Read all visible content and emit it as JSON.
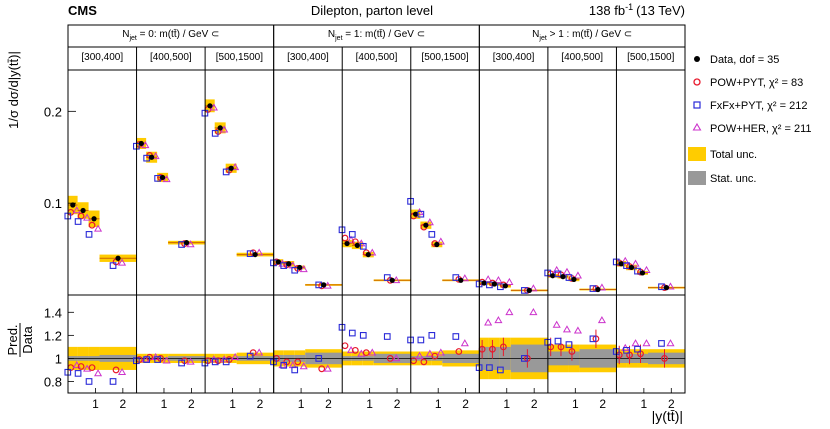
{
  "header": {
    "experiment": "CMS",
    "title": "Dilepton, parton level",
    "lumi_value": "138 fb",
    "lumi_exponent": "-1",
    "energy": "(13 TeV)"
  },
  "labels": {
    "ylabel_top": "1/σ dσ/d|y(tt̄)|",
    "ylabel_ratio_num": "Pred.",
    "ylabel_ratio_den": "Data",
    "xlabel": "|y(tt̄)|"
  },
  "legend": {
    "data": "Data, dof = 35",
    "powpyt": "POW+PYT, χ² = 83",
    "fxfx": "FxFx+PYT, χ² = 212",
    "powher": "POW+HER, χ² = 211",
    "total": "Total unc.",
    "stat": "Stat. unc."
  },
  "colors": {
    "data": "#000000",
    "powpyt": "#e8192c",
    "fxfx": "#2a2ad8",
    "powher": "#cc33cc",
    "total": "#ffcc00",
    "stat": "#999999"
  },
  "chart_data": {
    "type": "scatter",
    "title": "Dilepton, parton level",
    "xlabel": "|y(tt̄)|",
    "ylabel": "1/σ dσ/d|y(tt̄)|",
    "ratio_ylabel": "Pred./Data",
    "ylim_top": [
      0.0,
      0.245
    ],
    "ylim_ratio": [
      0.7,
      1.55
    ],
    "xlim_panel": [
      0,
      2.5
    ],
    "x_bin_edges": [
      0,
      0.35,
      0.75,
      1.15,
      2.5
    ],
    "x_ticks": [
      "1",
      "2"
    ],
    "y_ticks_top": [
      "0.1",
      "0.2"
    ],
    "y_ticks_ratio": [
      "0.8",
      "1",
      "1.2",
      "1.4"
    ],
    "groups": [
      {
        "label_pre": "N",
        "label_sub": "jet",
        "label_post": " = 0: m(tt̄) / GeV ⊂"
      },
      {
        "label_pre": "N",
        "label_sub": "jet",
        "label_post": " = 1: m(tt̄) / GeV ⊂"
      },
      {
        "label_pre": "N",
        "label_sub": "jet",
        "label_post": " > 1 : m(tt̄) / GeV ⊂"
      }
    ],
    "panels": [
      {
        "label": "[300,400]",
        "data": [
          0.098,
          0.092,
          0.083,
          0.04
        ],
        "total_unc": [
          0.01,
          0.009,
          0.009,
          0.004
        ],
        "powpyt": [
          0.09,
          0.086,
          0.076,
          0.036
        ],
        "fxfx": [
          0.086,
          0.08,
          0.066,
          0.032
        ],
        "powher": [
          0.092,
          0.084,
          0.072,
          0.035
        ]
      },
      {
        "label": "[400,500]",
        "data": [
          0.165,
          0.15,
          0.128,
          0.057
        ],
        "total_unc": [
          0.006,
          0.006,
          0.005,
          0.002
        ],
        "powpyt": [
          0.164,
          0.152,
          0.128,
          0.056
        ],
        "fxfx": [
          0.162,
          0.149,
          0.127,
          0.055
        ],
        "powher": [
          0.163,
          0.151,
          0.126,
          0.055
        ]
      },
      {
        "label": "[500,1500]",
        "data": [
          0.206,
          0.182,
          0.138,
          0.044
        ],
        "total_unc": [
          0.007,
          0.006,
          0.005,
          0.002
        ],
        "powpyt": [
          0.202,
          0.178,
          0.136,
          0.046
        ],
        "fxfx": [
          0.198,
          0.176,
          0.134,
          0.045
        ],
        "powher": [
          0.204,
          0.18,
          0.139,
          0.046
        ]
      },
      {
        "label": "[300,400]",
        "data": [
          0.036,
          0.034,
          0.03,
          0.011
        ],
        "total_unc": [
          0.003,
          0.003,
          0.002,
          0.001
        ],
        "powpyt": [
          0.036,
          0.033,
          0.029,
          0.01
        ],
        "fxfx": [
          0.035,
          0.032,
          0.027,
          0.011
        ],
        "powher": [
          0.034,
          0.032,
          0.028,
          0.01
        ]
      },
      {
        "label": "[400,500]",
        "data": [
          0.056,
          0.054,
          0.044,
          0.016
        ],
        "total_unc": [
          0.004,
          0.004,
          0.003,
          0.001
        ],
        "powpyt": [
          0.062,
          0.058,
          0.046,
          0.016
        ],
        "fxfx": [
          0.071,
          0.066,
          0.053,
          0.019
        ],
        "powher": [
          0.06,
          0.056,
          0.046,
          0.016
        ]
      },
      {
        "label": "[500,1500]",
        "data": [
          0.088,
          0.076,
          0.055,
          0.016
        ],
        "total_unc": [
          0.005,
          0.004,
          0.003,
          0.001
        ],
        "powpyt": [
          0.086,
          0.074,
          0.056,
          0.017
        ],
        "fxfx": [
          0.102,
          0.088,
          0.066,
          0.019
        ],
        "powher": [
          0.09,
          0.079,
          0.058,
          0.018
        ]
      },
      {
        "label": "[300,400]",
        "data": [
          0.013,
          0.012,
          0.01,
          0.005
        ],
        "total_unc": [
          0.002,
          0.002,
          0.002,
          0.001
        ],
        "powpyt": [
          0.014,
          0.013,
          0.011,
          0.005
        ],
        "fxfx": [
          0.012,
          0.011,
          0.009,
          0.005
        ],
        "powher": [
          0.017,
          0.016,
          0.014,
          0.007
        ]
      },
      {
        "label": "[400,500]",
        "data": [
          0.021,
          0.02,
          0.017,
          0.006
        ],
        "total_unc": [
          0.002,
          0.002,
          0.002,
          0.001
        ],
        "powpyt": [
          0.023,
          0.022,
          0.018,
          0.007
        ],
        "fxfx": [
          0.024,
          0.023,
          0.019,
          0.007
        ],
        "powher": [
          0.027,
          0.025,
          0.021,
          0.008
        ]
      },
      {
        "label": "[500,1500]",
        "data": [
          0.034,
          0.03,
          0.024,
          0.008
        ],
        "total_unc": [
          0.003,
          0.003,
          0.002,
          0.001
        ],
        "powpyt": [
          0.035,
          0.031,
          0.025,
          0.008
        ],
        "fxfx": [
          0.036,
          0.032,
          0.026,
          0.009
        ],
        "powher": [
          0.037,
          0.034,
          0.027,
          0.009
        ]
      }
    ],
    "ratios": {
      "powpyt": [
        [
          0.92,
          0.93,
          0.92,
          0.9
        ],
        [
          0.99,
          1.01,
          1.0,
          0.98
        ],
        [
          0.98,
          0.98,
          0.99,
          1.05
        ],
        [
          1.0,
          0.97,
          0.97,
          0.91
        ],
        [
          1.11,
          1.07,
          1.05,
          1.0
        ],
        [
          0.98,
          0.97,
          1.02,
          1.06
        ],
        [
          1.08,
          1.08,
          1.1,
          1.0
        ],
        [
          1.1,
          1.1,
          1.06,
          1.17
        ],
        [
          1.03,
          1.03,
          1.04,
          1.0
        ]
      ],
      "fxfx": [
        [
          0.88,
          0.87,
          0.8,
          0.8
        ],
        [
          0.98,
          0.99,
          0.99,
          0.96
        ],
        [
          0.96,
          0.97,
          0.97,
          1.02
        ],
        [
          0.97,
          0.94,
          0.9,
          1.0
        ],
        [
          1.27,
          1.22,
          1.2,
          1.19
        ],
        [
          1.16,
          1.16,
          1.2,
          1.19
        ],
        [
          0.92,
          0.92,
          0.9,
          1.0
        ],
        [
          1.14,
          1.15,
          1.12,
          1.17
        ],
        [
          1.06,
          1.07,
          1.08,
          1.13
        ]
      ],
      "powher": [
        [
          0.94,
          0.91,
          0.87,
          0.88
        ],
        [
          0.99,
          1.01,
          0.98,
          0.97
        ],
        [
          0.99,
          0.99,
          1.01,
          1.05
        ],
        [
          0.94,
          0.94,
          0.93,
          0.91
        ],
        [
          1.07,
          1.04,
          1.05,
          1.0
        ],
        [
          1.02,
          1.04,
          1.05,
          1.13
        ],
        [
          1.31,
          1.33,
          1.4,
          1.4
        ],
        [
          1.29,
          1.25,
          1.24,
          1.33
        ],
        [
          1.09,
          1.13,
          1.13,
          1.13
        ]
      ],
      "total_unc": [
        [
          0.1,
          0.1,
          0.1,
          0.1
        ],
        [
          0.04,
          0.04,
          0.04,
          0.04
        ],
        [
          0.04,
          0.04,
          0.04,
          0.05
        ],
        [
          0.07,
          0.07,
          0.07,
          0.08
        ],
        [
          0.06,
          0.06,
          0.06,
          0.06
        ],
        [
          0.06,
          0.06,
          0.06,
          0.07
        ],
        [
          0.18,
          0.18,
          0.18,
          0.18
        ],
        [
          0.12,
          0.12,
          0.12,
          0.12
        ],
        [
          0.08,
          0.08,
          0.08,
          0.08
        ]
      ],
      "stat_unc": [
        [
          0.02,
          0.02,
          0.02,
          0.03
        ],
        [
          0.01,
          0.01,
          0.01,
          0.02
        ],
        [
          0.01,
          0.01,
          0.01,
          0.02
        ],
        [
          0.03,
          0.03,
          0.03,
          0.05
        ],
        [
          0.02,
          0.02,
          0.02,
          0.04
        ],
        [
          0.02,
          0.02,
          0.02,
          0.04
        ],
        [
          0.1,
          0.1,
          0.1,
          0.12
        ],
        [
          0.06,
          0.06,
          0.06,
          0.08
        ],
        [
          0.04,
          0.04,
          0.04,
          0.05
        ]
      ]
    }
  }
}
